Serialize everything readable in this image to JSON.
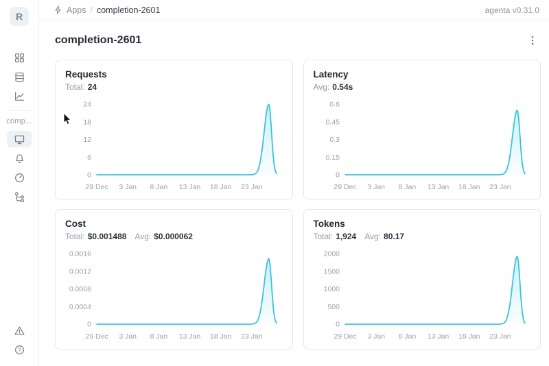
{
  "topbar": {
    "breadcrumb": {
      "icon": "lightning-icon",
      "section": "Apps",
      "separator": "/",
      "current": "completion-2601"
    },
    "version": "agenta v0.31.0"
  },
  "sidebar": {
    "avatar_letter": "R",
    "workspace_label": "comp...",
    "primary_icons": [
      "grid-icon",
      "table-icon",
      "line-chart-icon"
    ],
    "app_icons": [
      "monitor-icon",
      "bell-icon",
      "gauge-icon",
      "tree-icon"
    ],
    "selected_icon": "monitor-icon",
    "footer_icons": [
      "warning-triangle-icon",
      "help-icon"
    ]
  },
  "page": {
    "title": "completion-2601",
    "menu_icon": "kebab-menu-icon"
  },
  "chart_data": [
    {
      "type": "line",
      "title": "Requests",
      "stats": [
        {
          "label": "Total:",
          "value": "24"
        }
      ],
      "x_ticks": [
        "29 Dec",
        "3 Jan",
        "8 Jan",
        "13 Jan",
        "18 Jan",
        "23 Jan"
      ],
      "y_ticks": [
        "0",
        "6",
        "12",
        "18",
        "24"
      ],
      "ylim": [
        0,
        24
      ],
      "grid": false,
      "legend": false,
      "line_color": "#38c4de",
      "peak": {
        "x": "26 Jan",
        "value": 24
      },
      "series": [
        {
          "name": "requests",
          "points": [
            [
              "29 Dec",
              0
            ],
            [
              "3 Jan",
              0
            ],
            [
              "8 Jan",
              0
            ],
            [
              "13 Jan",
              0
            ],
            [
              "18 Jan",
              0
            ],
            [
              "23 Jan",
              0
            ],
            [
              "26 Jan",
              24
            ],
            [
              "27 Jan",
              0
            ]
          ]
        }
      ]
    },
    {
      "type": "line",
      "title": "Latency",
      "stats": [
        {
          "label": "Avg:",
          "value": "0.54s"
        }
      ],
      "x_ticks": [
        "29 Dec",
        "3 Jan",
        "8 Jan",
        "13 Jan",
        "18 Jan",
        "23 Jan"
      ],
      "y_ticks": [
        "0",
        "0.15",
        "0.3",
        "0.45",
        "0.6"
      ],
      "ylim": [
        0,
        0.6
      ],
      "grid": false,
      "legend": false,
      "line_color": "#38c4de",
      "peak": {
        "x": "26 Jan",
        "value": 0.55
      },
      "series": [
        {
          "name": "latency",
          "points": [
            [
              "29 Dec",
              0
            ],
            [
              "3 Jan",
              0
            ],
            [
              "8 Jan",
              0
            ],
            [
              "13 Jan",
              0
            ],
            [
              "18 Jan",
              0
            ],
            [
              "23 Jan",
              0
            ],
            [
              "26 Jan",
              0.55
            ],
            [
              "27 Jan",
              0
            ]
          ]
        }
      ]
    },
    {
      "type": "line",
      "title": "Cost",
      "stats": [
        {
          "label": "Total:",
          "value": "$0.001488"
        },
        {
          "label": "Avg:",
          "value": "$0.000062"
        }
      ],
      "x_ticks": [
        "29 Dec",
        "3 Jan",
        "8 Jan",
        "13 Jan",
        "18 Jan",
        "23 Jan"
      ],
      "y_ticks": [
        "0",
        "0.0004",
        "0.0008",
        "0.0012",
        "0.0016"
      ],
      "ylim": [
        0,
        0.0016
      ],
      "grid": false,
      "legend": false,
      "line_color": "#38c4de",
      "peak": {
        "x": "26 Jan",
        "value": 0.001488
      },
      "series": [
        {
          "name": "cost",
          "points": [
            [
              "29 Dec",
              0
            ],
            [
              "3 Jan",
              0
            ],
            [
              "8 Jan",
              0
            ],
            [
              "13 Jan",
              0
            ],
            [
              "18 Jan",
              0
            ],
            [
              "23 Jan",
              0
            ],
            [
              "26 Jan",
              0.001488
            ],
            [
              "27 Jan",
              0
            ]
          ]
        }
      ]
    },
    {
      "type": "line",
      "title": "Tokens",
      "stats": [
        {
          "label": "Total:",
          "value": "1,924"
        },
        {
          "label": "Avg:",
          "value": "80.17"
        }
      ],
      "x_ticks": [
        "29 Dec",
        "3 Jan",
        "8 Jan",
        "13 Jan",
        "18 Jan",
        "23 Jan"
      ],
      "y_ticks": [
        "0",
        "500",
        "1000",
        "1500",
        "2000"
      ],
      "ylim": [
        0,
        2000
      ],
      "grid": false,
      "legend": false,
      "line_color": "#38c4de",
      "peak": {
        "x": "26 Jan",
        "value": 1924
      },
      "series": [
        {
          "name": "tokens",
          "points": [
            [
              "29 Dec",
              0
            ],
            [
              "3 Jan",
              0
            ],
            [
              "8 Jan",
              0
            ],
            [
              "13 Jan",
              0
            ],
            [
              "18 Jan",
              0
            ],
            [
              "23 Jan",
              0
            ],
            [
              "26 Jan",
              1924
            ],
            [
              "27 Jan",
              0
            ]
          ]
        }
      ]
    }
  ]
}
